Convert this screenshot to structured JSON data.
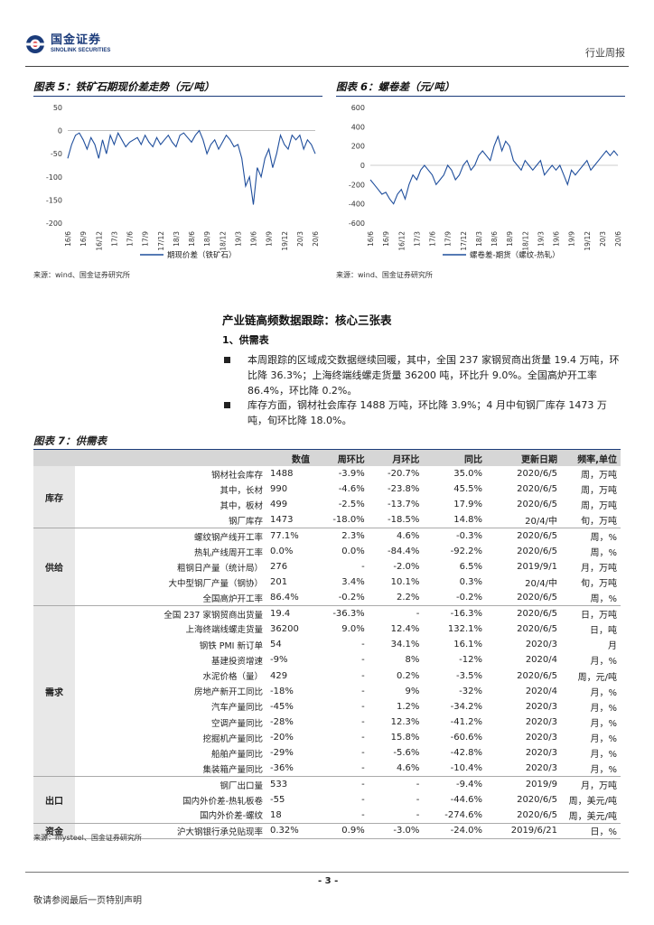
{
  "header": {
    "logo_cn": "国金证券",
    "logo_en": "SINOLINK SECURITIES",
    "report_type": "行业周报"
  },
  "figures": {
    "fig5_title": "图表 5：铁矿石期现价差走势（元/吨）",
    "fig6_title": "图表 6：螺卷差（元/吨）",
    "source": "来源：wind、国金证券研究所"
  },
  "chart_data": [
    {
      "type": "line",
      "title": "",
      "ylim": [
        -200,
        50
      ],
      "yticks": [
        50,
        0,
        -50,
        -100,
        -150,
        -200
      ],
      "xticks": [
        "16/6",
        "16/9",
        "16/12",
        "17/3",
        "17/6",
        "17/9",
        "17/12",
        "18/3",
        "18/6",
        "18/9",
        "18/12",
        "19/3",
        "19/6",
        "19/9",
        "19/12",
        "20/3",
        "20/6"
      ],
      "series": [
        {
          "name": "期现价差（铁矿石）",
          "color": "#1f4e9c",
          "x": [
            0,
            0.25,
            0.5,
            0.75,
            1,
            1.25,
            1.5,
            1.75,
            2,
            2.25,
            2.5,
            2.75,
            3,
            3.25,
            3.5,
            3.75,
            4,
            4.25,
            4.5,
            4.75,
            5,
            5.25,
            5.5,
            5.75,
            6,
            6.25,
            6.5,
            6.75,
            7,
            7.25,
            7.5,
            7.75,
            8,
            8.25,
            8.5,
            8.75,
            9,
            9.25,
            9.5,
            9.75,
            10,
            10.25,
            10.5,
            10.75,
            11,
            11.25,
            11.5,
            11.75,
            12,
            12.25,
            12.5,
            12.75,
            13,
            13.25,
            13.5,
            13.75,
            14,
            14.25,
            14.5,
            14.75,
            15,
            15.25,
            15.5,
            15.75,
            16
          ],
          "values": [
            -60,
            -30,
            -10,
            -5,
            -20,
            -40,
            -15,
            -30,
            -60,
            -20,
            -50,
            -10,
            -30,
            -5,
            -20,
            -35,
            -25,
            -20,
            -15,
            -30,
            -10,
            -25,
            -35,
            -15,
            -30,
            -20,
            -10,
            -25,
            -35,
            -10,
            -5,
            -15,
            -25,
            -10,
            0,
            -20,
            -50,
            -30,
            -20,
            -40,
            -25,
            -10,
            -20,
            -35,
            -30,
            -60,
            -120,
            -100,
            -160,
            -80,
            -100,
            -60,
            -40,
            -80,
            -50,
            -10,
            -30,
            -40,
            -10,
            -20,
            -10,
            -40,
            -20,
            -30,
            -50
          ]
        },
        {
          "name": "",
          "color": "#1f4e9c",
          "x": [],
          "values": []
        }
      ]
    },
    {
      "type": "line",
      "title": "",
      "ylim": [
        -600,
        600
      ],
      "yticks": [
        600,
        400,
        200,
        0,
        -200,
        -400,
        -600
      ],
      "xticks": [
        "16/6",
        "16/9",
        "16/12",
        "17/3",
        "17/6",
        "17/9",
        "17/12",
        "18/3",
        "18/6",
        "18/9",
        "18/12",
        "19/3",
        "19/6",
        "19/9",
        "19/12",
        "20/3",
        "20/6"
      ],
      "series": [
        {
          "name": "螺卷差-期货（螺纹-热轧）",
          "color": "#1f4e9c",
          "x": [
            0,
            0.25,
            0.5,
            0.75,
            1,
            1.25,
            1.5,
            1.75,
            2,
            2.25,
            2.5,
            2.75,
            3,
            3.25,
            3.5,
            3.75,
            4,
            4.25,
            4.5,
            4.75,
            5,
            5.25,
            5.5,
            5.75,
            6,
            6.25,
            6.5,
            6.75,
            7,
            7.25,
            7.5,
            7.75,
            8,
            8.25,
            8.5,
            8.75,
            9,
            9.25,
            9.5,
            9.75,
            10,
            10.25,
            10.5,
            10.75,
            11,
            11.25,
            11.5,
            11.75,
            12,
            12.25,
            12.5,
            12.75,
            13,
            13.25,
            13.5,
            13.75,
            14,
            14.25,
            14.5,
            14.75,
            15,
            15.25,
            15.5,
            15.75,
            16
          ],
          "values": [
            -150,
            -200,
            -250,
            -300,
            -280,
            -350,
            -400,
            -300,
            -250,
            -350,
            -200,
            -100,
            -150,
            -50,
            0,
            -50,
            -100,
            -200,
            -150,
            -100,
            0,
            -50,
            -150,
            -100,
            0,
            50,
            -50,
            0,
            100,
            150,
            100,
            50,
            200,
            300,
            150,
            250,
            200,
            50,
            0,
            -50,
            50,
            0,
            -50,
            0,
            50,
            -100,
            -50,
            0,
            -50,
            0,
            -100,
            -200,
            -50,
            -100,
            -50,
            0,
            50,
            -50,
            0,
            50,
            100,
            150,
            100,
            150,
            100
          ]
        }
      ]
    }
  ],
  "section": {
    "title": "产业链高频数据跟踪：核心三张表",
    "sub_title": "1、供需表",
    "bullet1": "本周跟踪的区域成交数据继续回暖，其中，全国 237 家钢贸商出货量 19.4 万吨，环比降 36.3%；上海终端线螺走货量 36200 吨，环比升 9.0%。全国高炉开工率 86.4%，环比降 0.2%。",
    "bullet2": "库存方面，钢材社会库存 1488 万吨，环比降 3.9%；4 月中旬钢厂库存 1473 万吨，旬环比降 18.0%。"
  },
  "table": {
    "title": "图表 7：供需表",
    "headers": [
      "数值",
      "周环比",
      "月环比",
      "同比",
      "更新日期",
      "频率,单位"
    ],
    "groups": [
      {
        "name": "库存",
        "rows": [
          {
            "name": "钢材社会库存",
            "val": "1488",
            "wow": "-3.9%",
            "mom": "-20.7%",
            "yoy": "35.0%",
            "date": "2020/6/5",
            "unit": "周，万吨"
          },
          {
            "name": "其中，长材",
            "val": "990",
            "wow": "-4.6%",
            "mom": "-23.8%",
            "yoy": "45.5%",
            "date": "2020/6/5",
            "unit": "周，万吨"
          },
          {
            "name": "其中，板材",
            "val": "499",
            "wow": "-2.5%",
            "mom": "-13.7%",
            "yoy": "17.9%",
            "date": "2020/6/5",
            "unit": "周，万吨"
          },
          {
            "name": "钢厂库存",
            "val": "1473",
            "wow": "-18.0%",
            "mom": "-18.5%",
            "yoy": "14.8%",
            "date": "20/4/中",
            "unit": "旬，万吨"
          }
        ]
      },
      {
        "name": "供给",
        "rows": [
          {
            "name": "螺纹钢产线开工率",
            "val": "77.1%",
            "wow": "2.3%",
            "mom": "4.6%",
            "yoy": "-0.3%",
            "date": "2020/6/5",
            "unit": "周，%"
          },
          {
            "name": "热轧产线周开工率",
            "val": "0.0%",
            "wow": "0.0%",
            "mom": "-84.4%",
            "yoy": "-92.2%",
            "date": "2020/6/5",
            "unit": "周，%"
          },
          {
            "name": "粗钢日产量（统计局）",
            "val": "276",
            "wow": "-",
            "mom": "-2.0%",
            "yoy": "6.5%",
            "date": "2019/9/1",
            "unit": "月，万吨"
          },
          {
            "name": "大中型钢厂产量（钢协）",
            "val": "201",
            "wow": "3.4%",
            "mom": "10.1%",
            "yoy": "0.3%",
            "date": "20/4/中",
            "unit": "旬，万吨"
          },
          {
            "name": "全国高炉开工率",
            "val": "86.4%",
            "wow": "-0.2%",
            "mom": "2.2%",
            "yoy": "-0.2%",
            "date": "2020/6/5",
            "unit": "周，%"
          }
        ]
      },
      {
        "name": "需求",
        "rows": [
          {
            "name": "全国 237 家钢贸商出货量",
            "val": "19.4",
            "wow": "-36.3%",
            "mom": "-",
            "yoy": "-16.3%",
            "date": "2020/6/5",
            "unit": "日，万吨"
          },
          {
            "name": "上海终端线螺走货量",
            "val": "36200",
            "wow": "9.0%",
            "mom": "12.4%",
            "yoy": "132.1%",
            "date": "2020/6/5",
            "unit": "日，吨"
          },
          {
            "name": "钢铁 PMI 新订单",
            "val": "54",
            "wow": "-",
            "mom": "34.1%",
            "yoy": "16.1%",
            "date": "2020/3",
            "unit": "月"
          },
          {
            "name": "基建投资增速",
            "val": "-9%",
            "wow": "-",
            "mom": "8%",
            "yoy": "-12%",
            "date": "2020/4",
            "unit": "月，%"
          },
          {
            "name": "水泥价格（量）",
            "val": "429",
            "wow": "-",
            "mom": "0.2%",
            "yoy": "-3.5%",
            "date": "2020/6/5",
            "unit": "周，元/吨"
          },
          {
            "name": "房地产新开工同比",
            "val": "-18%",
            "wow": "-",
            "mom": "9%",
            "yoy": "-32%",
            "date": "2020/4",
            "unit": "月，%"
          },
          {
            "name": "汽车产量同比",
            "val": "-45%",
            "wow": "-",
            "mom": "1.2%",
            "yoy": "-34.2%",
            "date": "2020/3",
            "unit": "月，%"
          },
          {
            "name": "空调产量同比",
            "val": "-28%",
            "wow": "-",
            "mom": "12.3%",
            "yoy": "-41.2%",
            "date": "2020/3",
            "unit": "月，%"
          },
          {
            "name": "挖掘机产量同比",
            "val": "-20%",
            "wow": "-",
            "mom": "15.8%",
            "yoy": "-60.6%",
            "date": "2020/3",
            "unit": "月，%"
          },
          {
            "name": "船舶产量同比",
            "val": "-29%",
            "wow": "-",
            "mom": "-5.6%",
            "yoy": "-42.8%",
            "date": "2020/3",
            "unit": "月，%"
          },
          {
            "name": "集装箱产量同比",
            "val": "-36%",
            "wow": "-",
            "mom": "4.6%",
            "yoy": "-10.4%",
            "date": "2020/3",
            "unit": "月，%"
          }
        ]
      },
      {
        "name": "出口",
        "rows": [
          {
            "name": "钢厂出口量",
            "val": "533",
            "wow": "-",
            "mom": "-",
            "yoy": "-9.4%",
            "date": "2019/9",
            "unit": "月，万吨"
          },
          {
            "name": "国内外价差-热轧板卷",
            "val": "-55",
            "wow": "-",
            "mom": "-",
            "yoy": "-44.6%",
            "date": "2020/6/5",
            "unit": "周，美元/吨"
          },
          {
            "name": "国内外价差-螺纹",
            "val": "18",
            "wow": "-",
            "mom": "-",
            "yoy": "-274.6%",
            "date": "2020/6/5",
            "unit": "周，美元/吨"
          }
        ]
      },
      {
        "name": "资金",
        "rows": [
          {
            "name": "沪大钢银行承兑贴现率",
            "val": "0.32%",
            "wow": "0.9%",
            "mom": "-3.0%",
            "yoy": "-24.0%",
            "date": "2019/6/21",
            "unit": "日，%"
          }
        ]
      }
    ],
    "source": "来源：mysteel、国金证券研究所"
  },
  "footer": {
    "page_num": "- 3 -",
    "note": "敬请参阅最后一页特别声明"
  },
  "colors": {
    "accent": "#1b3b7a",
    "line": "#1f4e9c",
    "header_bg": "#d6d6d6"
  }
}
